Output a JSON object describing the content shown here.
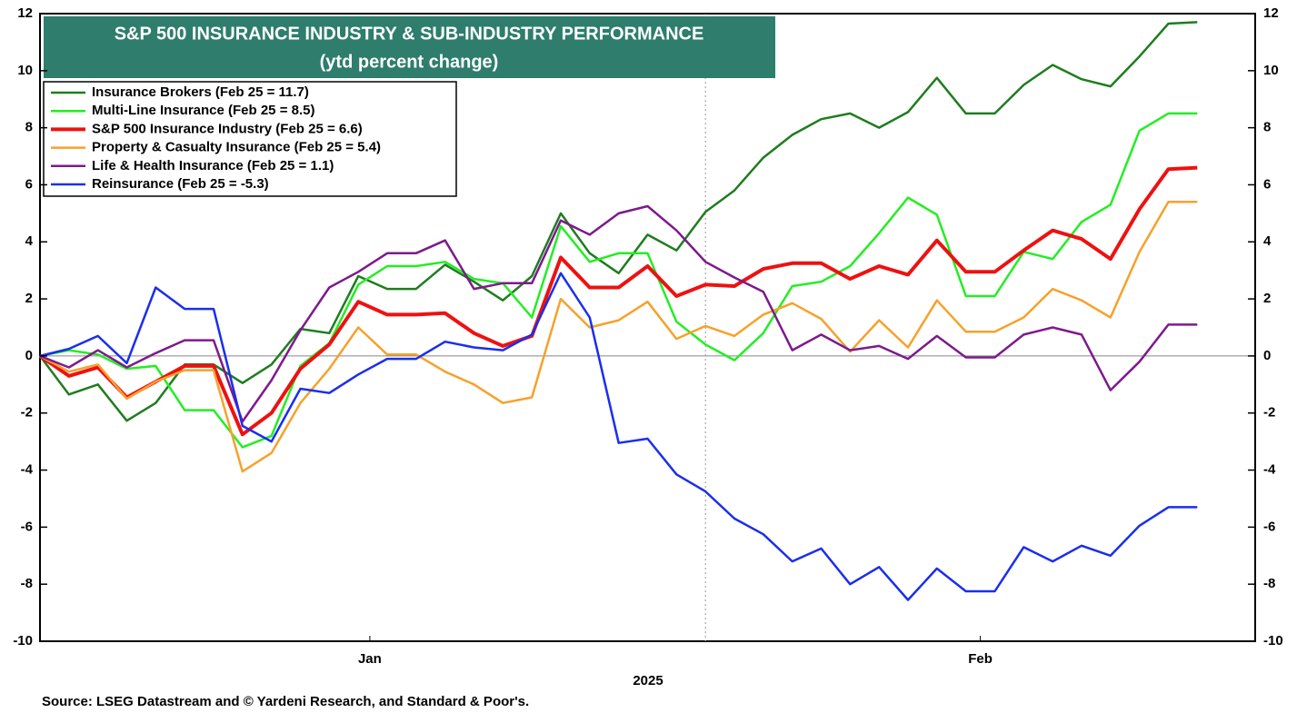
{
  "chart_data": {
    "type": "line",
    "title": "S&P 500 INSURANCE INDUSTRY & SUB-INDUSTRY PERFORMANCE",
    "subtitle": "(ytd percent change)",
    "x_label": "2025",
    "source": "Source: LSEG Datastream and © Yardeni Research, and Standard & Poor's.",
    "x": [
      0,
      1,
      2,
      3,
      4,
      5,
      6,
      7,
      8,
      9,
      10,
      11,
      12,
      13,
      14,
      15,
      16,
      17,
      18,
      19,
      20,
      21,
      22,
      23,
      24,
      25,
      26,
      27,
      28,
      29,
      30,
      31,
      32,
      33,
      34,
      35,
      36,
      37,
      38,
      39,
      40
    ],
    "xlim": [
      0,
      42
    ],
    "xticks": [
      {
        "value": 11.4,
        "label": "Jan"
      },
      {
        "value": 32.5,
        "label": "Feb"
      }
    ],
    "vline": 23,
    "hline": 0,
    "ylim": [
      -10,
      12
    ],
    "yticks": [
      -10,
      -8,
      -6,
      -4,
      -2,
      0,
      2,
      4,
      6,
      8,
      10,
      12
    ],
    "y2lim": [
      -10,
      12
    ],
    "y2ticks": [
      -10,
      -8,
      -6,
      -4,
      -2,
      0,
      2,
      4,
      6,
      8,
      10,
      12
    ],
    "series": [
      {
        "name": "Insurance Brokers (Feb 25 = 11.7)",
        "color": "#1e7d1e",
        "width": 2.5,
        "values": [
          0,
          -1.35,
          -1.0,
          -2.27,
          -1.65,
          -0.3,
          -0.3,
          -0.95,
          -0.3,
          0.95,
          0.8,
          2.8,
          2.35,
          2.35,
          3.2,
          2.6,
          1.95,
          2.8,
          5.0,
          3.6,
          2.9,
          4.25,
          3.7,
          5.05,
          5.8,
          6.95,
          7.75,
          8.3,
          8.5,
          8.0,
          8.55,
          9.75,
          8.5,
          8.5,
          9.5,
          10.2,
          9.7,
          9.45,
          10.5,
          11.65,
          11.7
        ]
      },
      {
        "name": "Multi-Line Insurance (Feb 25 = 8.5)",
        "color": "#22ee22",
        "width": 2.5,
        "values": [
          0,
          0.2,
          0.05,
          -0.45,
          -0.35,
          -1.9,
          -1.9,
          -3.2,
          -2.8,
          -0.35,
          0.45,
          2.5,
          3.15,
          3.15,
          3.3,
          2.7,
          2.55,
          1.35,
          4.55,
          3.3,
          3.6,
          3.6,
          1.2,
          0.4,
          -0.15,
          0.8,
          2.45,
          2.6,
          3.15,
          4.3,
          5.55,
          4.95,
          2.1,
          2.1,
          3.65,
          3.4,
          4.7,
          5.3,
          7.9,
          8.5,
          8.5
        ]
      },
      {
        "name": "S&P 500 Insurance Industry (Feb 25 = 6.6)",
        "color": "#ee1111",
        "width": 4,
        "values": [
          0,
          -0.7,
          -0.4,
          -1.45,
          -0.9,
          -0.35,
          -0.35,
          -2.75,
          -2.0,
          -0.45,
          0.4,
          1.9,
          1.45,
          1.45,
          1.5,
          0.8,
          0.35,
          0.7,
          3.45,
          2.4,
          2.4,
          3.15,
          2.1,
          2.5,
          2.45,
          3.05,
          3.25,
          3.25,
          2.7,
          3.15,
          2.85,
          4.05,
          2.95,
          2.95,
          3.7,
          4.4,
          4.1,
          3.4,
          5.15,
          6.55,
          6.6
        ]
      },
      {
        "name": "Property & Casualty Insurance (Feb 25 = 5.4)",
        "color": "#f7a12a",
        "width": 2.5,
        "values": [
          0,
          -0.55,
          -0.3,
          -1.5,
          -0.9,
          -0.5,
          -0.5,
          -4.05,
          -3.4,
          -1.65,
          -0.45,
          1.0,
          0.05,
          0.05,
          -0.55,
          -1.0,
          -1.65,
          -1.45,
          2.0,
          1.0,
          1.25,
          1.9,
          0.6,
          1.05,
          0.7,
          1.45,
          1.85,
          1.3,
          0.15,
          1.25,
          0.3,
          1.95,
          0.85,
          0.85,
          1.35,
          2.35,
          1.95,
          1.35,
          3.65,
          5.4,
          5.4
        ]
      },
      {
        "name": "Life & Health Insurance (Feb 25 = 1.1)",
        "color": "#7d1a8c",
        "width": 2.5,
        "values": [
          0,
          -0.4,
          0.2,
          -0.4,
          0.1,
          0.55,
          0.55,
          -2.3,
          -0.85,
          0.9,
          2.4,
          2.95,
          3.6,
          3.6,
          4.05,
          2.35,
          2.55,
          2.55,
          4.75,
          4.25,
          5.0,
          5.25,
          4.4,
          3.3,
          2.75,
          2.25,
          0.2,
          0.75,
          0.2,
          0.35,
          -0.1,
          0.7,
          -0.05,
          -0.05,
          0.75,
          1.0,
          0.75,
          -1.2,
          -0.2,
          1.1,
          1.1
        ]
      },
      {
        "name": "Reinsurance (Feb 25 = -5.3)",
        "color": "#1a2eee",
        "width": 2.5,
        "values": [
          0,
          0.25,
          0.7,
          -0.25,
          2.4,
          1.65,
          1.65,
          -2.45,
          -3.0,
          -1.15,
          -1.3,
          -0.65,
          -0.1,
          -0.1,
          0.5,
          0.3,
          0.2,
          0.75,
          2.9,
          1.35,
          -3.05,
          -2.9,
          -4.15,
          -4.75,
          -5.7,
          -6.25,
          -7.2,
          -6.75,
          -8.0,
          -7.4,
          -8.55,
          -7.45,
          -8.25,
          -8.25,
          -6.7,
          -7.2,
          -6.65,
          -7.0,
          -5.95,
          -5.3,
          -5.3
        ]
      }
    ]
  }
}
